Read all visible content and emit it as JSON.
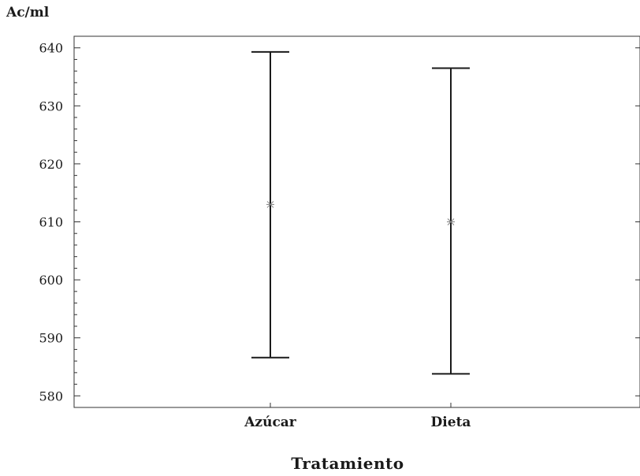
{
  "chart_data": {
    "type": "errorbar",
    "ylabel": "Ac/ml",
    "xlabel": "Tratamiento",
    "categories": [
      "Azúcar",
      "Dieta"
    ],
    "mean": [
      613.0,
      610.0
    ],
    "lower": [
      586.6,
      583.8
    ],
    "upper": [
      639.3,
      636.5
    ],
    "ylim": [
      578.0,
      642.0
    ],
    "yticks": [
      580,
      590,
      600,
      610,
      620,
      630,
      640
    ],
    "grid": false,
    "colors": {
      "bar": "#1a1a1a",
      "mean_marker": "#808080",
      "axes": "#333333"
    }
  }
}
